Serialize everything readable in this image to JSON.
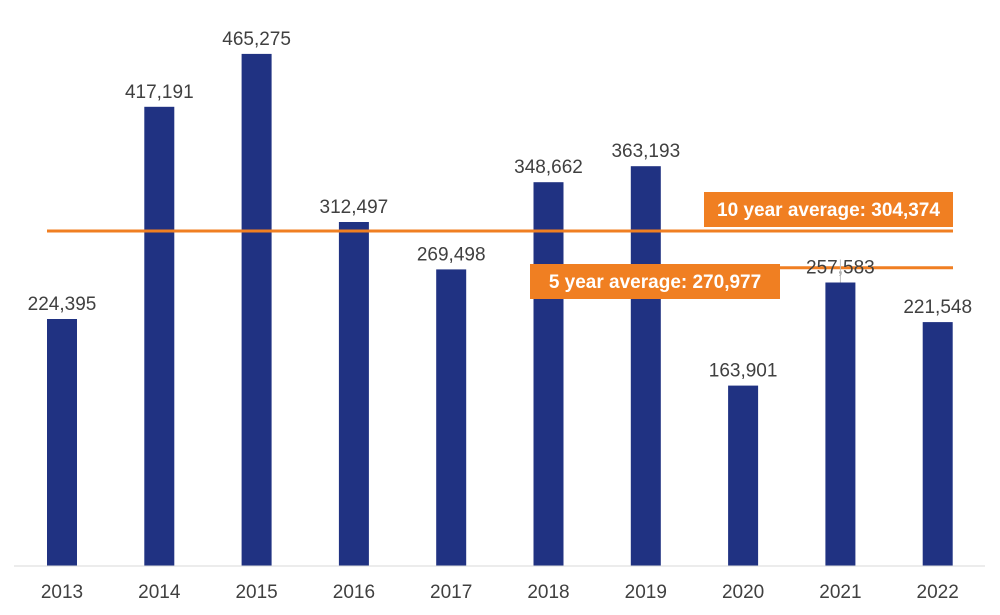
{
  "chart_data": {
    "type": "bar",
    "categories": [
      "2013",
      "2014",
      "2015",
      "2016",
      "2017",
      "2018",
      "2019",
      "2020",
      "2021",
      "2022"
    ],
    "values": [
      224395,
      417191,
      465275,
      312497,
      269498,
      348662,
      363193,
      163901,
      257583,
      221548
    ],
    "value_labels": [
      "224,395",
      "417,191",
      "465,275",
      "312,497",
      "269,498",
      "348,662",
      "363,193",
      "163,901",
      "257,583",
      "221,548"
    ],
    "bar_color": "#203282",
    "ylim": [
      0,
      500000
    ],
    "grid": false,
    "reference_lines": [
      {
        "key": "ten",
        "label": "10 year average: 304,374",
        "value": 304374,
        "color": "#f07f22"
      },
      {
        "key": "five",
        "label": "5 year average: 270,977",
        "value": 270977,
        "color": "#f07f22"
      }
    ]
  }
}
